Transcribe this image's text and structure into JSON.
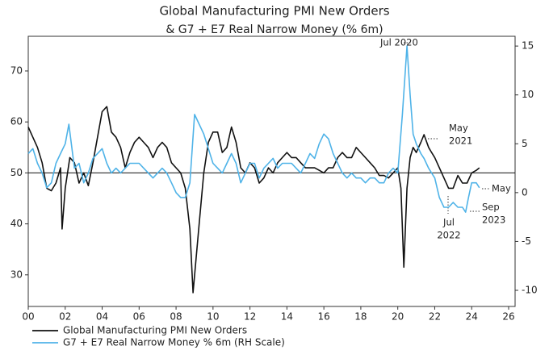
{
  "chart_data": {
    "type": "line",
    "title": "Global Manufacturing PMI New Orders",
    "subtitle": "& G7 + E7 Real Narrow Money (% 6m)",
    "xlim": [
      2000,
      2026.35
    ],
    "xticks": [
      {
        "value": 2000,
        "label": "00"
      },
      {
        "value": 2002,
        "label": "02"
      },
      {
        "value": 2004,
        "label": "04"
      },
      {
        "value": 2006,
        "label": "06"
      },
      {
        "value": 2008,
        "label": "08"
      },
      {
        "value": 2010,
        "label": "10"
      },
      {
        "value": 2012,
        "label": "12"
      },
      {
        "value": 2014,
        "label": "14"
      },
      {
        "value": 2016,
        "label": "16"
      },
      {
        "value": 2018,
        "label": "18"
      },
      {
        "value": 2020,
        "label": "20"
      },
      {
        "value": 2022,
        "label": "22"
      },
      {
        "value": 2024,
        "label": "24"
      },
      {
        "value": 2026,
        "label": "26"
      }
    ],
    "ylim": [
      23.8,
      76.8
    ],
    "yticks": [
      30,
      40,
      50,
      60,
      70
    ],
    "y2lim": [
      -11.65,
      16
    ],
    "y2ticks": [
      -10,
      -5,
      0,
      5,
      10,
      15
    ],
    "reference_line": 50,
    "series": [
      {
        "name": "Global Manufacturing PMI New Orders",
        "color": "#111111",
        "x": [
          2000.0,
          2000.25,
          2000.5,
          2000.75,
          2001.0,
          2001.25,
          2001.5,
          2001.75,
          2001.83,
          2002.0,
          2002.25,
          2002.5,
          2002.75,
          2003.0,
          2003.25,
          2003.5,
          2003.75,
          2004.0,
          2004.25,
          2004.5,
          2004.75,
          2005.0,
          2005.25,
          2005.5,
          2005.75,
          2006.0,
          2006.25,
          2006.5,
          2006.75,
          2007.0,
          2007.25,
          2007.5,
          2007.75,
          2008.0,
          2008.25,
          2008.5,
          2008.75,
          2008.92,
          2009.25,
          2009.5,
          2009.75,
          2010.0,
          2010.25,
          2010.5,
          2010.75,
          2011.0,
          2011.25,
          2011.5,
          2011.75,
          2012.0,
          2012.25,
          2012.5,
          2012.75,
          2013.0,
          2013.25,
          2013.5,
          2013.75,
          2014.0,
          2014.25,
          2014.5,
          2014.75,
          2015.0,
          2015.25,
          2015.5,
          2015.75,
          2016.0,
          2016.25,
          2016.5,
          2016.75,
          2017.0,
          2017.25,
          2017.5,
          2017.75,
          2018.0,
          2018.25,
          2018.5,
          2018.75,
          2019.0,
          2019.25,
          2019.5,
          2019.75,
          2020.0,
          2020.17,
          2020.33,
          2020.5,
          2020.67,
          2020.83,
          2021.0,
          2021.25,
          2021.42,
          2021.67,
          2021.83,
          2022.0,
          2022.25,
          2022.5,
          2022.75,
          2023.0,
          2023.25,
          2023.5,
          2023.75,
          2024.0,
          2024.25,
          2024.42
        ],
        "values": [
          59,
          57,
          55,
          52,
          47,
          46.5,
          48,
          51,
          39,
          47,
          53,
          52,
          48,
          50,
          47.5,
          52,
          57,
          62,
          63,
          58,
          57,
          55,
          51,
          54,
          56,
          57,
          56,
          55,
          53,
          55,
          56,
          55,
          52,
          51,
          50,
          47,
          39,
          26.5,
          40,
          50,
          56,
          58,
          58,
          54,
          55,
          59,
          56,
          51,
          50,
          52,
          51,
          48,
          49,
          51,
          50,
          52,
          53,
          54,
          53,
          53,
          52,
          51,
          51,
          51,
          50.5,
          50,
          51,
          51,
          53,
          54,
          53,
          53,
          55,
          54,
          53,
          52,
          51,
          49.5,
          49.5,
          49,
          50,
          51,
          47,
          31.5,
          47,
          53,
          55,
          54,
          56,
          57.5,
          55,
          54,
          53,
          51,
          49,
          47,
          47,
          49.5,
          48,
          48,
          50,
          50.5,
          51
        ]
      },
      {
        "name": "G7 + E7 Real Narrow Money % 6m (RH Scale)",
        "color": "#4fb3e8",
        "axis": "y2",
        "x": [
          2000.0,
          2000.25,
          2000.5,
          2000.75,
          2001.0,
          2001.25,
          2001.5,
          2001.75,
          2002.0,
          2002.2,
          2002.5,
          2002.75,
          2003.0,
          2003.25,
          2003.5,
          2003.75,
          2004.0,
          2004.25,
          2004.5,
          2004.75,
          2005.0,
          2005.25,
          2005.5,
          2005.75,
          2006.0,
          2006.25,
          2006.5,
          2006.75,
          2007.0,
          2007.25,
          2007.5,
          2007.75,
          2008.0,
          2008.25,
          2008.5,
          2008.75,
          2009.0,
          2009.25,
          2009.5,
          2009.75,
          2010.0,
          2010.25,
          2010.5,
          2010.75,
          2011.0,
          2011.25,
          2011.5,
          2011.75,
          2012.0,
          2012.25,
          2012.5,
          2012.75,
          2013.0,
          2013.25,
          2013.5,
          2013.75,
          2014.0,
          2014.25,
          2014.5,
          2014.75,
          2015.0,
          2015.25,
          2015.5,
          2015.75,
          2016.0,
          2016.25,
          2016.5,
          2016.75,
          2017.0,
          2017.25,
          2017.5,
          2017.75,
          2018.0,
          2018.25,
          2018.5,
          2018.75,
          2019.0,
          2019.25,
          2019.5,
          2019.75,
          2020.0,
          2020.25,
          2020.5,
          2020.67,
          2020.83,
          2021.0,
          2021.25,
          2021.42,
          2021.67,
          2021.83,
          2022.0,
          2022.25,
          2022.5,
          2022.75,
          2023.0,
          2023.25,
          2023.5,
          2023.67,
          2023.83,
          2024.0,
          2024.25,
          2024.42
        ],
        "values": [
          4,
          4.5,
          3,
          2,
          0.5,
          1,
          3,
          4,
          5,
          7,
          2.5,
          3,
          1,
          2,
          3.5,
          4,
          4.5,
          3,
          2,
          2.5,
          2,
          2.5,
          3,
          3,
          3,
          2.5,
          2,
          1.5,
          2,
          2.5,
          2,
          1,
          0,
          -0.5,
          -0.5,
          1,
          8,
          7,
          6,
          4.5,
          3,
          2.5,
          2,
          3,
          4,
          3,
          1,
          2,
          3,
          3,
          1.5,
          2.5,
          3,
          3.5,
          2.5,
          3,
          3,
          3,
          2.5,
          2,
          3,
          4,
          3.5,
          5,
          6,
          5.5,
          4,
          3,
          2,
          1.5,
          2,
          1.5,
          1.5,
          1,
          1.5,
          1.5,
          1,
          1,
          2,
          2.5,
          2,
          8,
          15,
          10,
          6,
          5,
          4,
          3.5,
          2.5,
          2,
          1.5,
          -0.5,
          -1.5,
          -1.5,
          -1,
          -1.5,
          -1.5,
          -2,
          -0.5,
          1,
          1,
          0.5
        ]
      }
    ],
    "annotations": [
      {
        "lines": [
          "Jul 2020"
        ]
      },
      {
        "lines": [
          "May",
          "2021"
        ]
      },
      {
        "lines": [
          "Jul",
          "2022"
        ]
      },
      {
        "lines": [
          "Sep",
          "2023"
        ]
      },
      {
        "lines": [
          "May"
        ]
      }
    ]
  }
}
